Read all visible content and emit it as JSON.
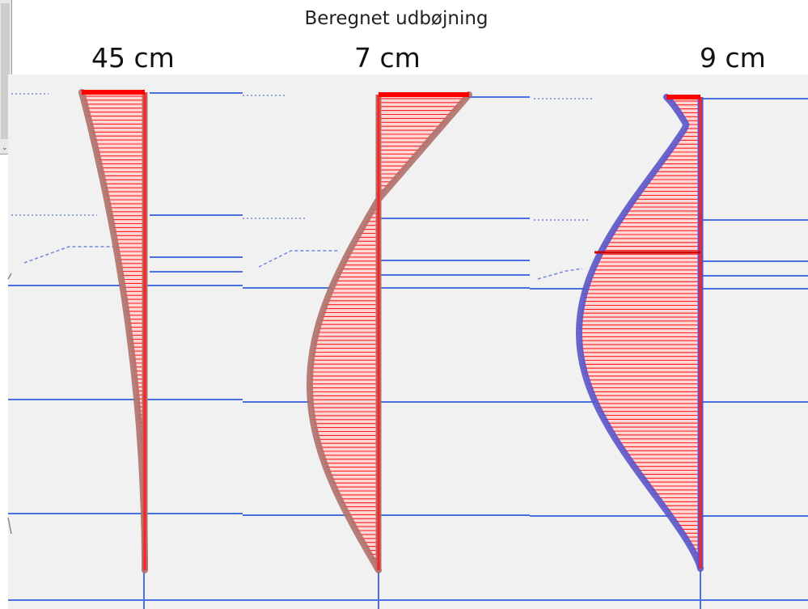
{
  "title": "Beregnet udbøjning",
  "panels": [
    {
      "label": "45 cm",
      "shape": "taper",
      "outline_color": "#b0706a"
    },
    {
      "label": "7 cm",
      "shape": "s-curve",
      "outline_color": "#b0706a"
    },
    {
      "label": "9 cm",
      "shape": "bow",
      "outline_color": "#5a55c8"
    }
  ],
  "colors": {
    "background": "#f1f1f1",
    "level_line": "#4a6fe0",
    "hatch": "#ff0000",
    "fill": "#ffd6d6"
  },
  "icons": {
    "scrollbar": "scroll-down-arrow-icon"
  }
}
